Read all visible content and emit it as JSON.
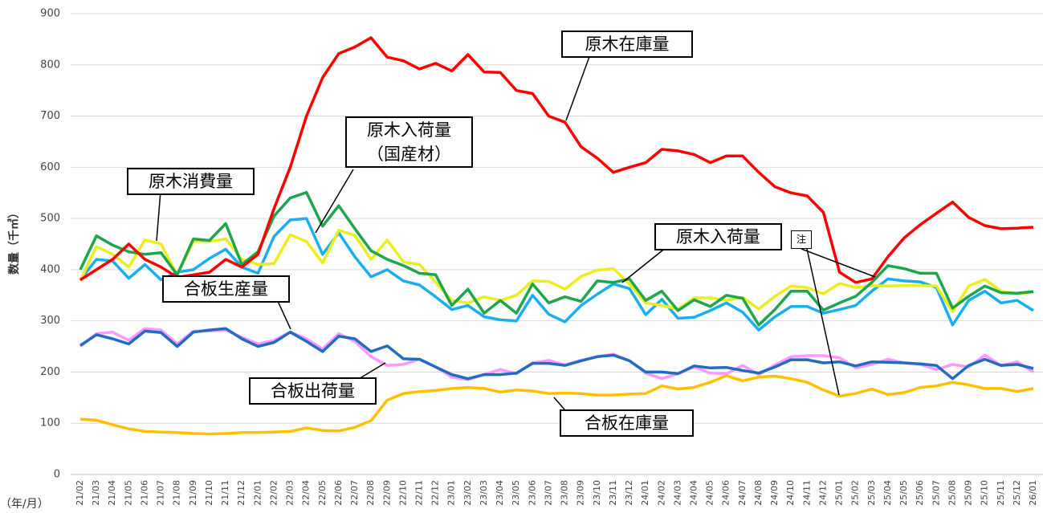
{
  "chart_data": {
    "type": "line",
    "y_label": "数量（千㎥）",
    "x_label": "（年/月）",
    "categories": [
      "21/02",
      "21/03",
      "21/04",
      "21/05",
      "21/06",
      "21/07",
      "21/08",
      "21/09",
      "21/10",
      "21/11",
      "21/12",
      "22/01",
      "22/02",
      "22/03",
      "22/04",
      "22/05",
      "22/06",
      "22/07",
      "22/08",
      "22/09",
      "22/10",
      "22/11",
      "22/12",
      "23/01",
      "23/02",
      "23/03",
      "23/04",
      "23/05",
      "23/06",
      "23/07",
      "23/08",
      "23/09",
      "23/10",
      "23/11",
      "23/12",
      "24/01",
      "24/02",
      "24/03",
      "24/04",
      "24/05",
      "24/06",
      "24/07",
      "24/08",
      "24/09",
      "24/10",
      "24/11",
      "24/12",
      "25/01",
      "25/02",
      "25/03",
      "25/04",
      "25/05",
      "25/06",
      "25/07",
      "25/08",
      "25/09",
      "25/10",
      "25/11",
      "25/12",
      "26/01"
    ],
    "ylim": [
      0,
      900
    ],
    "yticks": [
      0,
      100,
      200,
      300,
      400,
      500,
      600,
      700,
      800,
      900
    ],
    "grid": true,
    "note": "注",
    "series": [
      {
        "name": "合板在庫量",
        "color": "#ffc000",
        "values": [
          108,
          106,
          97,
          89,
          84,
          83,
          82,
          80,
          79,
          80,
          82,
          82,
          83,
          84,
          91,
          86,
          85,
          92,
          105,
          145,
          158,
          162,
          164,
          168,
          170,
          168,
          161,
          165,
          163,
          158,
          159,
          158,
          155,
          155,
          157,
          158,
          173,
          167,
          170,
          180,
          193,
          183,
          190,
          192,
          187,
          180,
          165,
          153,
          158,
          167,
          156,
          160,
          170,
          173,
          180,
          175,
          168,
          168,
          162,
          168
        ]
      },
      {
        "name": "合板出荷量",
        "color": "#ff99ff",
        "values": [
          250,
          275,
          278,
          262,
          285,
          282,
          255,
          280,
          280,
          282,
          268,
          255,
          262,
          278,
          265,
          245,
          275,
          260,
          230,
          213,
          215,
          225,
          210,
          190,
          185,
          195,
          205,
          197,
          218,
          223,
          214,
          223,
          230,
          235,
          222,
          198,
          187,
          197,
          210,
          198,
          197,
          213,
          195,
          214,
          230,
          232,
          232,
          228,
          208,
          215,
          225,
          218,
          215,
          205,
          215,
          210,
          233,
          213,
          220,
          200
        ]
      },
      {
        "name": "合板生産量",
        "color": "#1f6cc0",
        "values": [
          252,
          273,
          265,
          255,
          280,
          277,
          250,
          278,
          282,
          285,
          265,
          250,
          258,
          278,
          260,
          240,
          270,
          265,
          240,
          251,
          226,
          225,
          210,
          195,
          187,
          195,
          195,
          198,
          217,
          217,
          213,
          222,
          230,
          233,
          222,
          200,
          200,
          197,
          212,
          208,
          209,
          203,
          198,
          210,
          224,
          224,
          218,
          220,
          212,
          220,
          219,
          218,
          216,
          213,
          187,
          213,
          225,
          213,
          215,
          207
        ]
      },
      {
        "name": "原木入荷量",
        "color": "#1aaef0",
        "values": [
          380,
          420,
          417,
          383,
          410,
          380,
          395,
          400,
          422,
          440,
          405,
          393,
          465,
          497,
          500,
          430,
          472,
          425,
          386,
          400,
          378,
          370,
          347,
          322,
          330,
          308,
          302,
          300,
          350,
          313,
          298,
          330,
          352,
          372,
          363,
          312,
          342,
          305,
          307,
          320,
          335,
          317,
          282,
          308,
          328,
          328,
          315,
          322,
          330,
          358,
          382,
          378,
          376,
          365,
          292,
          340,
          358,
          335,
          340,
          320
        ]
      },
      {
        "name": "原木消費量",
        "color": "#eaee1e",
        "values": [
          378,
          445,
          430,
          405,
          458,
          450,
          390,
          455,
          455,
          460,
          420,
          410,
          412,
          468,
          455,
          413,
          477,
          467,
          420,
          458,
          415,
          410,
          375,
          340,
          335,
          347,
          340,
          350,
          378,
          377,
          362,
          387,
          399,
          402,
          372,
          335,
          330,
          323,
          345,
          345,
          340,
          346,
          323,
          348,
          368,
          365,
          353,
          373,
          365,
          369,
          368,
          369,
          369,
          368,
          318,
          368,
          381,
          358,
          353,
          356
        ]
      },
      {
        "name": "原木入荷量\n（国産材）",
        "color": "#1ea64c",
        "values": [
          400,
          466,
          448,
          435,
          430,
          433,
          390,
          460,
          457,
          490,
          410,
          435,
          505,
          540,
          551,
          485,
          525,
          480,
          437,
          420,
          408,
          393,
          390,
          330,
          362,
          315,
          340,
          315,
          372,
          335,
          347,
          338,
          378,
          375,
          382,
          340,
          358,
          320,
          341,
          328,
          350,
          344,
          292,
          322,
          358,
          358,
          321,
          335,
          348,
          375,
          408,
          402,
          393,
          393,
          325,
          348,
          368,
          355,
          354,
          357
        ]
      },
      {
        "name": "原木在庫量",
        "color": "#ff0000",
        "values": [
          380,
          400,
          420,
          450,
          420,
          405,
          385,
          390,
          395,
          420,
          405,
          430,
          520,
          600,
          700,
          775,
          822,
          835,
          853,
          815,
          808,
          792,
          803,
          788,
          820,
          786,
          785,
          750,
          744,
          700,
          688,
          640,
          618,
          590,
          600,
          609,
          635,
          632,
          625,
          609,
          622,
          622,
          590,
          562,
          550,
          544,
          512,
          395,
          375,
          382,
          425,
          462,
          488,
          510,
          532,
          502,
          486,
          480,
          481,
          483
        ]
      }
    ]
  }
}
